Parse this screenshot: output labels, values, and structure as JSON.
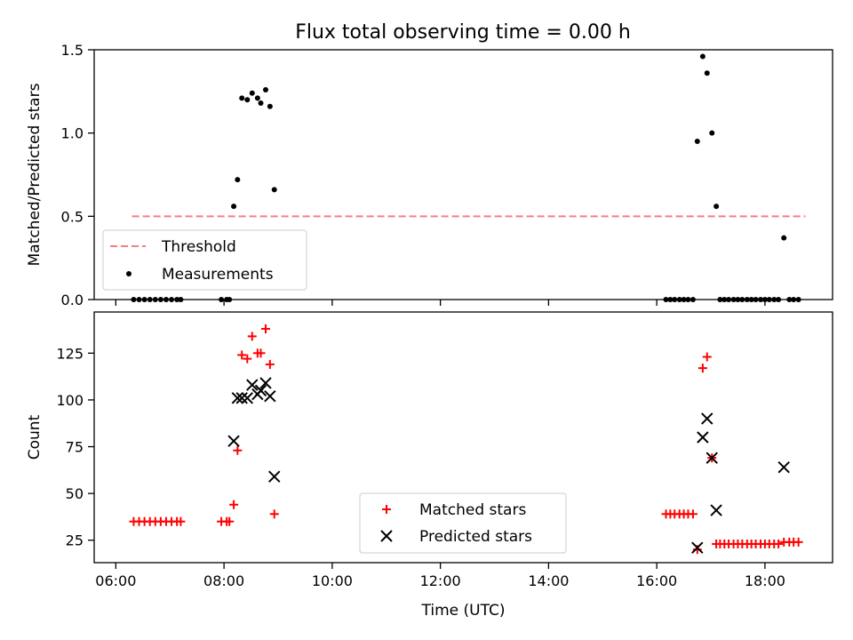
{
  "title": "Flux total observing time = 0.00 h",
  "colors": {
    "threshold": "#f08080",
    "matched": "#ff0000",
    "predicted": "#000000",
    "measurement": "#000000"
  },
  "chart_data": [
    {
      "type": "scatter",
      "ylabel": "Matched/Predicted stars",
      "xlim": [
        5.6,
        19.25
      ],
      "ylim": [
        0,
        1.5
      ],
      "yticks": [
        0.0,
        0.5,
        1.0,
        1.5
      ],
      "yticklabels": [
        "0.0",
        "0.5",
        "1.0",
        "1.5"
      ],
      "legend_position": "lower-left",
      "legend": {
        "threshold": "Threshold",
        "measurements": "Measurements"
      },
      "threshold": {
        "value": 0.5,
        "x": [
          6.3,
          18.75
        ]
      },
      "series": [
        {
          "name": "Measurements",
          "x": [
            6.33,
            6.43,
            6.53,
            6.63,
            6.73,
            6.83,
            6.93,
            7.03,
            7.13,
            7.2,
            7.95,
            8.05,
            8.1,
            8.18,
            8.25,
            8.33,
            8.43,
            8.52,
            8.62,
            8.68,
            8.77,
            8.85,
            8.93,
            16.17,
            16.25,
            16.33,
            16.42,
            16.5,
            16.58,
            16.67,
            16.75,
            16.85,
            16.93,
            17.02,
            17.1,
            17.17,
            17.25,
            17.33,
            17.42,
            17.5,
            17.58,
            17.67,
            17.75,
            17.83,
            17.92,
            18.0,
            18.08,
            18.17,
            18.25,
            18.35,
            18.45,
            18.53,
            18.62
          ],
          "y": [
            0,
            0,
            0,
            0,
            0,
            0,
            0,
            0,
            0,
            0,
            0,
            0,
            0,
            0.56,
            0.72,
            1.21,
            1.2,
            1.24,
            1.21,
            1.18,
            1.26,
            1.16,
            0.66,
            0,
            0,
            0,
            0,
            0,
            0,
            0,
            0.95,
            1.46,
            1.36,
            1.0,
            0.56,
            0,
            0,
            0,
            0,
            0,
            0,
            0,
            0,
            0,
            0,
            0,
            0,
            0,
            0,
            0.37,
            0,
            0,
            0
          ]
        }
      ]
    },
    {
      "type": "scatter",
      "xlabel": "Time (UTC)",
      "ylabel": "Count",
      "xlim": [
        5.6,
        19.25
      ],
      "ylim": [
        13,
        147
      ],
      "xticks": [
        6,
        8,
        10,
        12,
        14,
        16,
        18
      ],
      "xticklabels": [
        "06:00",
        "08:00",
        "10:00",
        "12:00",
        "14:00",
        "16:00",
        "18:00"
      ],
      "yticks": [
        25,
        50,
        75,
        100,
        125
      ],
      "yticklabels": [
        "25",
        "50",
        "75",
        "100",
        "125"
      ],
      "legend_position": "lower-center",
      "series": [
        {
          "name": "Matched stars",
          "x": [
            6.33,
            6.43,
            6.53,
            6.63,
            6.73,
            6.83,
            6.93,
            7.03,
            7.13,
            7.2,
            7.95,
            8.05,
            8.1,
            8.18,
            8.25,
            8.33,
            8.43,
            8.52,
            8.62,
            8.68,
            8.77,
            8.85,
            8.93,
            16.17,
            16.25,
            16.33,
            16.42,
            16.5,
            16.58,
            16.67,
            16.75,
            16.85,
            16.93,
            17.02,
            17.1,
            17.17,
            17.25,
            17.33,
            17.42,
            17.5,
            17.58,
            17.67,
            17.75,
            17.83,
            17.92,
            18.0,
            18.08,
            18.17,
            18.25,
            18.35,
            18.45,
            18.53,
            18.62
          ],
          "y": [
            35,
            35,
            35,
            35,
            35,
            35,
            35,
            35,
            35,
            35,
            35,
            35,
            35,
            44,
            73,
            124,
            122,
            134,
            125,
            125,
            138,
            119,
            39,
            39,
            39,
            39,
            39,
            39,
            39,
            39,
            20,
            117,
            123,
            69,
            23,
            23,
            23,
            23,
            23,
            23,
            23,
            23,
            23,
            23,
            23,
            23,
            23,
            23,
            23,
            24,
            24,
            24,
            24
          ]
        },
        {
          "name": "Predicted stars",
          "x": [
            8.18,
            8.25,
            8.33,
            8.43,
            8.52,
            8.62,
            8.68,
            8.77,
            8.85,
            8.93,
            16.75,
            16.85,
            16.93,
            17.02,
            17.1,
            18.35
          ],
          "y": [
            78,
            101,
            101,
            101,
            108,
            103,
            105,
            109,
            102,
            59,
            21,
            80,
            90,
            69,
            41,
            64
          ]
        }
      ]
    }
  ]
}
